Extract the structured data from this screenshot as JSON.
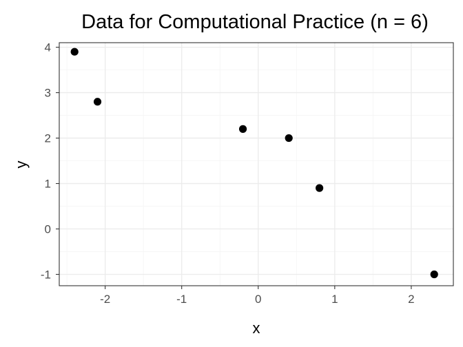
{
  "chart_data": {
    "type": "scatter",
    "title": "Data for Computational Practice (n = 6)",
    "xlabel": "x",
    "ylabel": "y",
    "xlim": [
      -2.6,
      2.55
    ],
    "ylim": [
      -1.25,
      4.1
    ],
    "x_ticks": [
      -2,
      -1,
      0,
      1,
      2
    ],
    "y_ticks": [
      -1,
      0,
      1,
      2,
      3,
      4
    ],
    "x_tick_labels": [
      "-2",
      "-1",
      "0",
      "1",
      "2"
    ],
    "y_tick_labels": [
      "-1",
      "0",
      "1",
      "2",
      "3",
      "4"
    ],
    "x_minor_ticks": [
      -2.5,
      -1.5,
      -0.5,
      0.5,
      1.5
    ],
    "y_minor_ticks": [
      -0.5,
      0.5,
      1.5,
      2.5,
      3.5
    ],
    "grid": true,
    "legend": "none",
    "point_color": "#000000",
    "series": [
      {
        "points": [
          {
            "x": -2.4,
            "y": 3.9
          },
          {
            "x": -2.1,
            "y": 2.8
          },
          {
            "x": -0.2,
            "y": 2.2
          },
          {
            "x": 0.4,
            "y": 2.0
          },
          {
            "x": 0.8,
            "y": 0.9
          },
          {
            "x": 2.3,
            "y": -1.0
          }
        ]
      }
    ]
  },
  "style": {
    "grid_major_color": "#ebebeb",
    "grid_minor_color": "#f5f5f5",
    "panel_border_color": "#333333",
    "tick_color": "#333333",
    "tick_label_color": "#4d4d4d"
  }
}
